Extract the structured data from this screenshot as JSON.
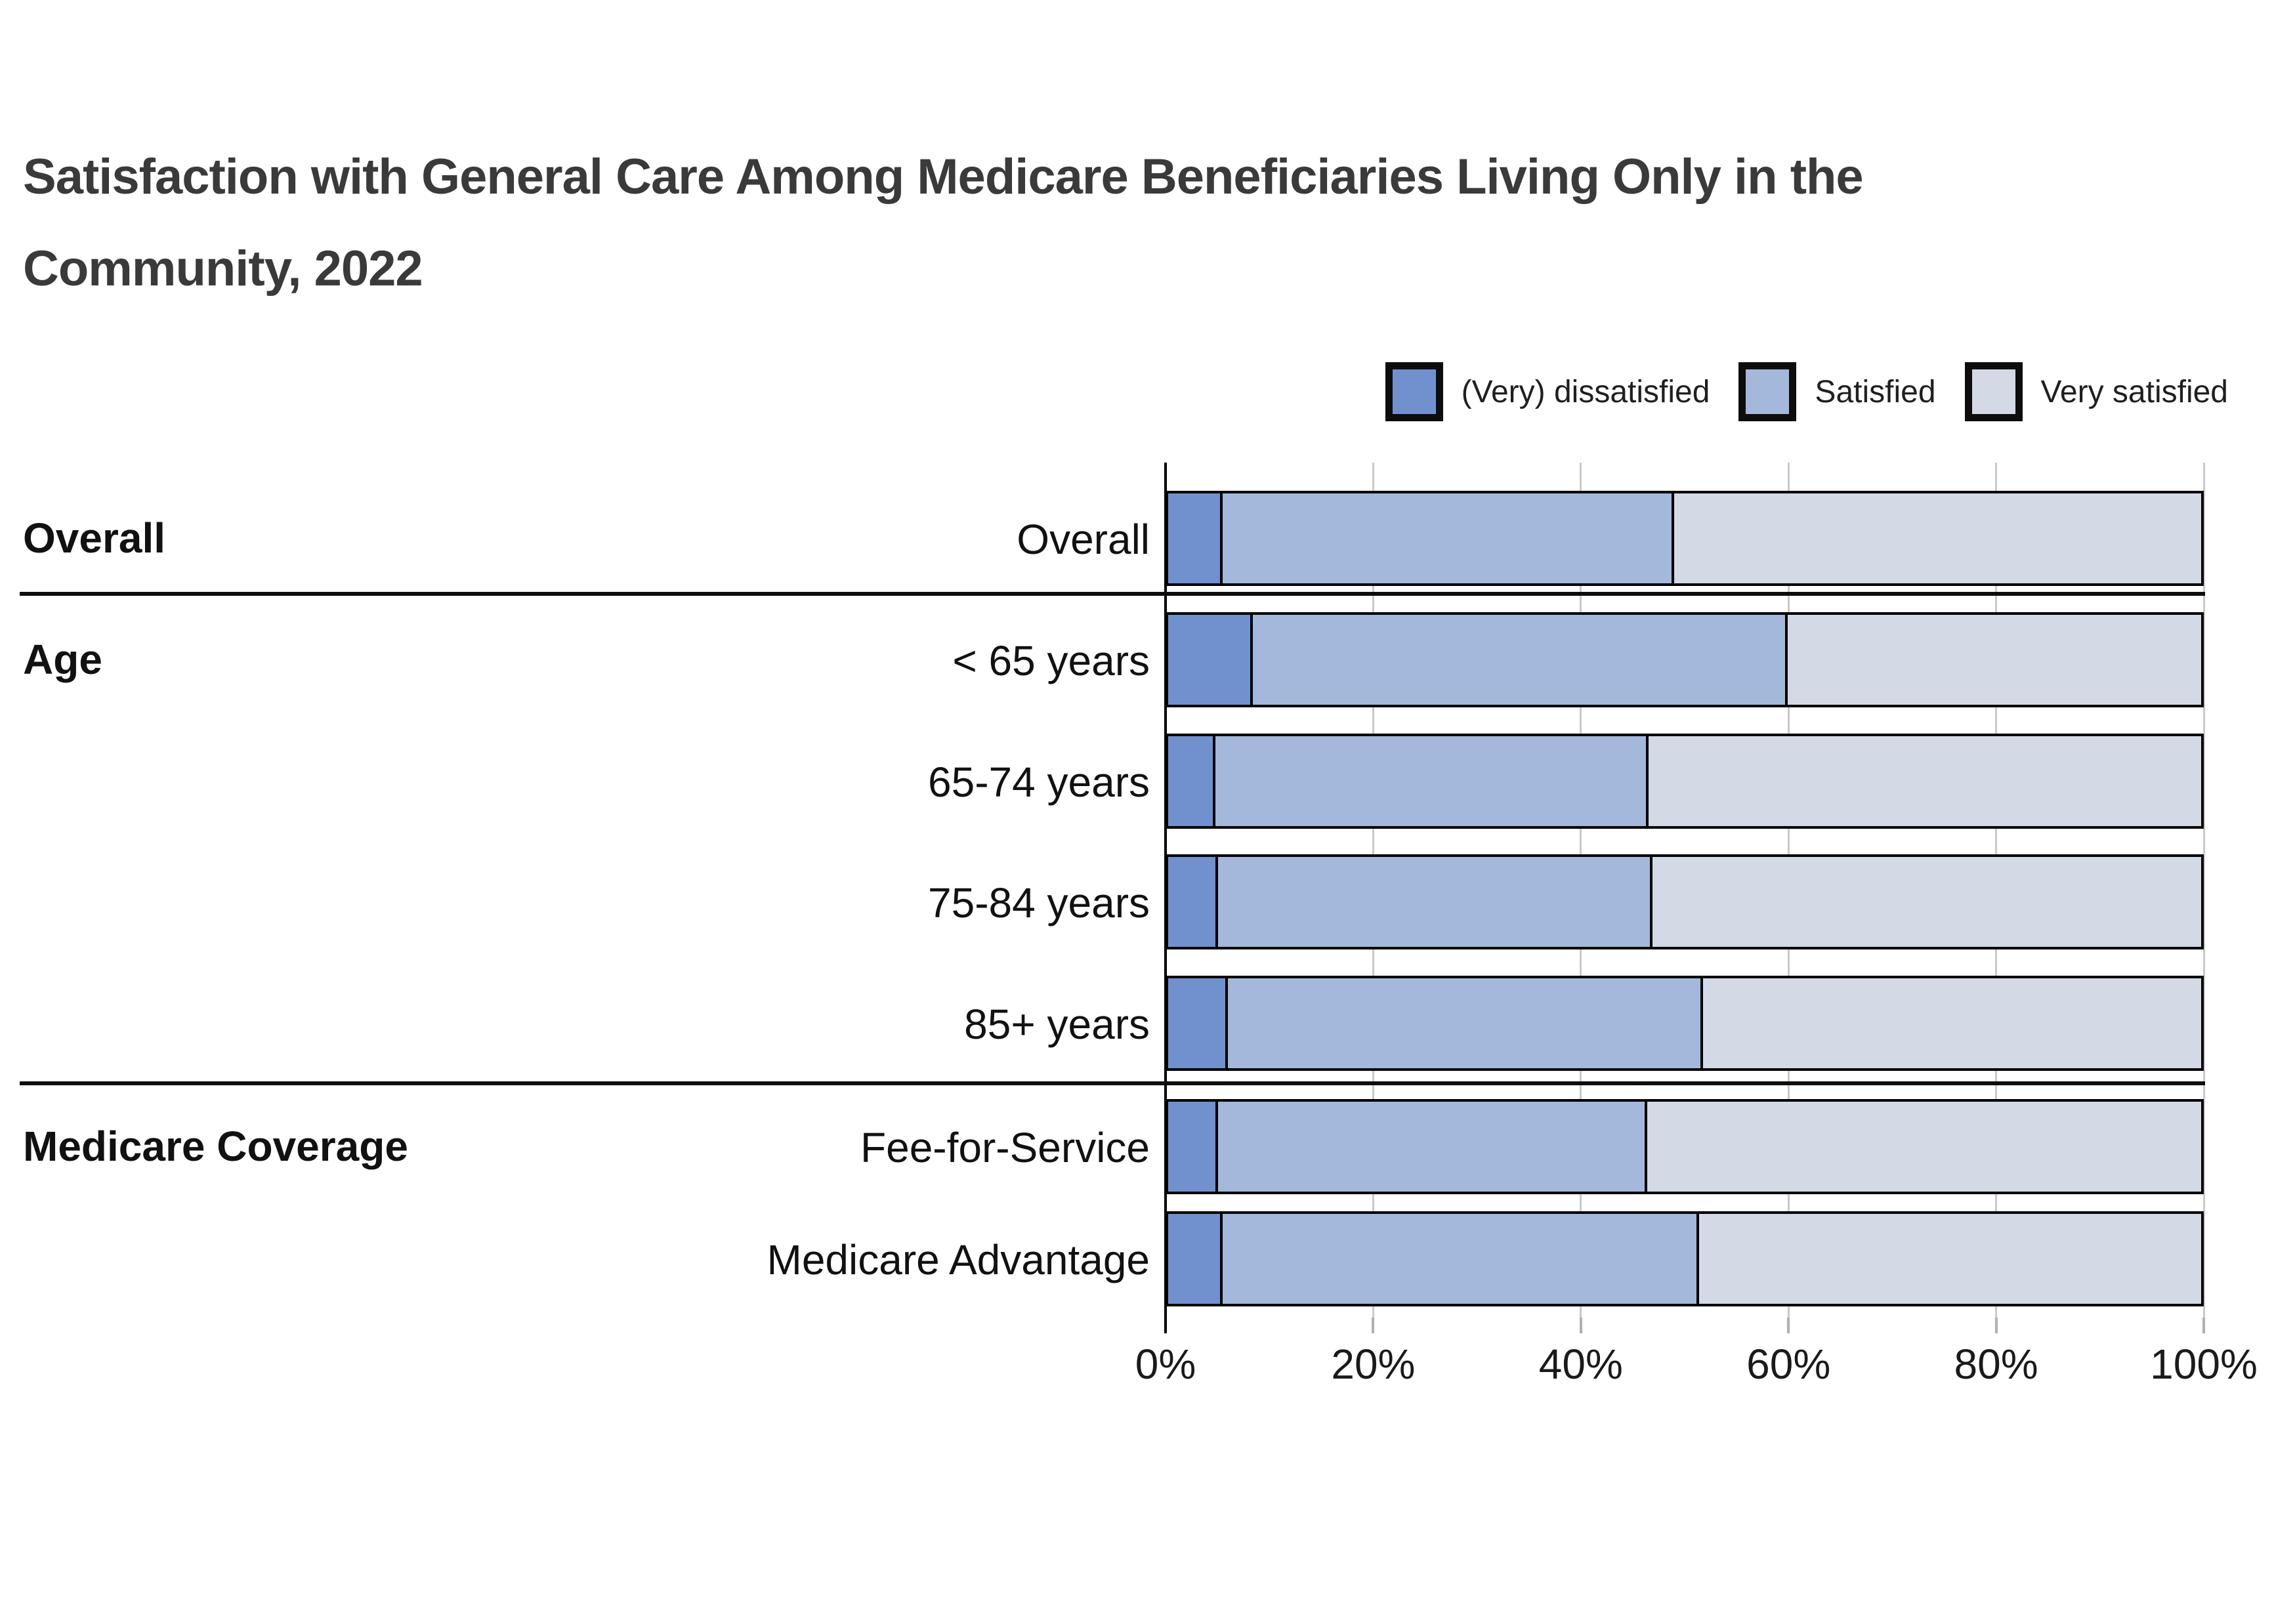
{
  "title": {
    "line1": "Satisfaction with General Care Among Medicare Beneficiaries Living Only in the",
    "line2": "Community, 2022"
  },
  "legend": [
    {
      "label": "(Very) dissatisfied",
      "color": "#7191CE"
    },
    {
      "label": "Satisfied",
      "color": "#A4B8DC"
    },
    {
      "label": "Very satisfied",
      "color": "#D3DAE6"
    }
  ],
  "chart_data": {
    "type": "bar",
    "orientation": "horizontal",
    "stacked": true,
    "title": "Satisfaction with General Care Among Medicare Beneficiaries Living Only in the Community, 2022",
    "categories": [
      "Overall",
      "< 65 years",
      "65-74 years",
      "75-84 years",
      "85+ years",
      "Fee-for-Service",
      "Medicare Advantage"
    ],
    "groups": [
      {
        "label": "Overall",
        "row_index": 0
      },
      {
        "label": "Age",
        "row_index": 1
      },
      {
        "label": "Medicare Coverage",
        "row_index": 5
      }
    ],
    "series": [
      {
        "name": "(Very) dissatisfied",
        "color": "#7191CE",
        "values": [
          5.3,
          8.2,
          4.6,
          4.8,
          5.8,
          4.8,
          5.3
        ]
      },
      {
        "name": "Satisfied",
        "color": "#A4B8DC",
        "values": [
          43.7,
          51.8,
          41.9,
          42.1,
          46.0,
          41.6,
          46.1
        ]
      },
      {
        "name": "Very satisfied",
        "color": "#D3DAE6",
        "values": [
          51.0,
          40.0,
          53.5,
          53.1,
          48.2,
          53.6,
          48.6
        ]
      }
    ],
    "xlabel": "",
    "ylabel": "",
    "xlim": [
      0,
      100
    ],
    "x_tick_values": [
      0,
      20,
      40,
      60,
      80,
      100
    ],
    "x_ticks": [
      "0%",
      "20%",
      "40%",
      "60%",
      "80%",
      "100%"
    ],
    "grid": true,
    "legend_position": "top-right"
  }
}
